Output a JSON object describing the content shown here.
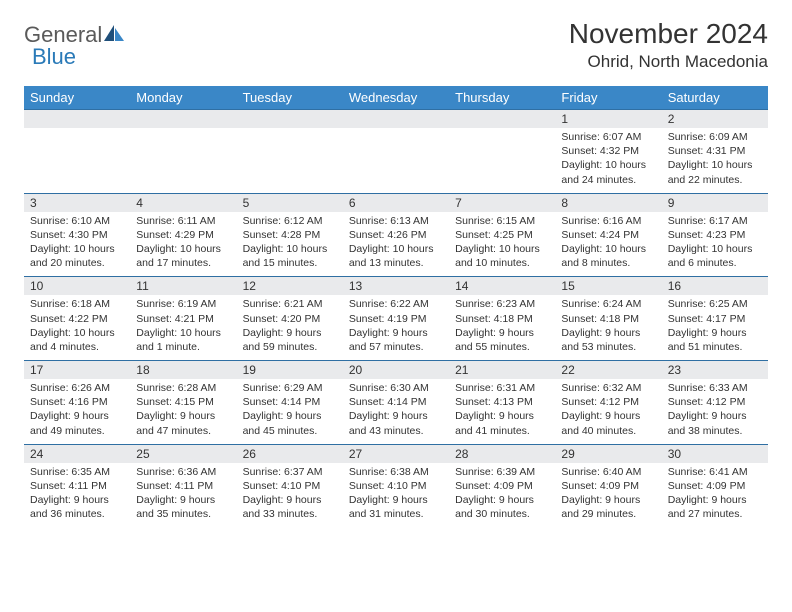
{
  "brand": {
    "name1": "General",
    "name2": "Blue"
  },
  "title": "November 2024",
  "location": "Ohrid, North Macedonia",
  "colors": {
    "header_bg": "#3a87c7",
    "header_text": "#ffffff",
    "daynum_bg": "#e9eaec",
    "row_border": "#2f6fa3",
    "body_text": "#333333",
    "logo_gray": "#5a5a5a",
    "logo_blue": "#2a7ab8",
    "page_bg": "#ffffff"
  },
  "typography": {
    "title_fontsize": 28,
    "location_fontsize": 17,
    "header_fontsize": 13,
    "daynum_fontsize": 12,
    "cell_fontsize": 10.5,
    "logo_fontsize": 22
  },
  "day_headers": [
    "Sunday",
    "Monday",
    "Tuesday",
    "Wednesday",
    "Thursday",
    "Friday",
    "Saturday"
  ],
  "weeks": [
    [
      {
        "n": "",
        "lines": [
          "",
          "",
          "",
          ""
        ]
      },
      {
        "n": "",
        "lines": [
          "",
          "",
          "",
          ""
        ]
      },
      {
        "n": "",
        "lines": [
          "",
          "",
          "",
          ""
        ]
      },
      {
        "n": "",
        "lines": [
          "",
          "",
          "",
          ""
        ]
      },
      {
        "n": "",
        "lines": [
          "",
          "",
          "",
          ""
        ]
      },
      {
        "n": "1",
        "lines": [
          "Sunrise: 6:07 AM",
          "Sunset: 4:32 PM",
          "Daylight: 10 hours",
          "and 24 minutes."
        ]
      },
      {
        "n": "2",
        "lines": [
          "Sunrise: 6:09 AM",
          "Sunset: 4:31 PM",
          "Daylight: 10 hours",
          "and 22 minutes."
        ]
      }
    ],
    [
      {
        "n": "3",
        "lines": [
          "Sunrise: 6:10 AM",
          "Sunset: 4:30 PM",
          "Daylight: 10 hours",
          "and 20 minutes."
        ]
      },
      {
        "n": "4",
        "lines": [
          "Sunrise: 6:11 AM",
          "Sunset: 4:29 PM",
          "Daylight: 10 hours",
          "and 17 minutes."
        ]
      },
      {
        "n": "5",
        "lines": [
          "Sunrise: 6:12 AM",
          "Sunset: 4:28 PM",
          "Daylight: 10 hours",
          "and 15 minutes."
        ]
      },
      {
        "n": "6",
        "lines": [
          "Sunrise: 6:13 AM",
          "Sunset: 4:26 PM",
          "Daylight: 10 hours",
          "and 13 minutes."
        ]
      },
      {
        "n": "7",
        "lines": [
          "Sunrise: 6:15 AM",
          "Sunset: 4:25 PM",
          "Daylight: 10 hours",
          "and 10 minutes."
        ]
      },
      {
        "n": "8",
        "lines": [
          "Sunrise: 6:16 AM",
          "Sunset: 4:24 PM",
          "Daylight: 10 hours",
          "and 8 minutes."
        ]
      },
      {
        "n": "9",
        "lines": [
          "Sunrise: 6:17 AM",
          "Sunset: 4:23 PM",
          "Daylight: 10 hours",
          "and 6 minutes."
        ]
      }
    ],
    [
      {
        "n": "10",
        "lines": [
          "Sunrise: 6:18 AM",
          "Sunset: 4:22 PM",
          "Daylight: 10 hours",
          "and 4 minutes."
        ]
      },
      {
        "n": "11",
        "lines": [
          "Sunrise: 6:19 AM",
          "Sunset: 4:21 PM",
          "Daylight: 10 hours",
          "and 1 minute."
        ]
      },
      {
        "n": "12",
        "lines": [
          "Sunrise: 6:21 AM",
          "Sunset: 4:20 PM",
          "Daylight: 9 hours",
          "and 59 minutes."
        ]
      },
      {
        "n": "13",
        "lines": [
          "Sunrise: 6:22 AM",
          "Sunset: 4:19 PM",
          "Daylight: 9 hours",
          "and 57 minutes."
        ]
      },
      {
        "n": "14",
        "lines": [
          "Sunrise: 6:23 AM",
          "Sunset: 4:18 PM",
          "Daylight: 9 hours",
          "and 55 minutes."
        ]
      },
      {
        "n": "15",
        "lines": [
          "Sunrise: 6:24 AM",
          "Sunset: 4:18 PM",
          "Daylight: 9 hours",
          "and 53 minutes."
        ]
      },
      {
        "n": "16",
        "lines": [
          "Sunrise: 6:25 AM",
          "Sunset: 4:17 PM",
          "Daylight: 9 hours",
          "and 51 minutes."
        ]
      }
    ],
    [
      {
        "n": "17",
        "lines": [
          "Sunrise: 6:26 AM",
          "Sunset: 4:16 PM",
          "Daylight: 9 hours",
          "and 49 minutes."
        ]
      },
      {
        "n": "18",
        "lines": [
          "Sunrise: 6:28 AM",
          "Sunset: 4:15 PM",
          "Daylight: 9 hours",
          "and 47 minutes."
        ]
      },
      {
        "n": "19",
        "lines": [
          "Sunrise: 6:29 AM",
          "Sunset: 4:14 PM",
          "Daylight: 9 hours",
          "and 45 minutes."
        ]
      },
      {
        "n": "20",
        "lines": [
          "Sunrise: 6:30 AM",
          "Sunset: 4:14 PM",
          "Daylight: 9 hours",
          "and 43 minutes."
        ]
      },
      {
        "n": "21",
        "lines": [
          "Sunrise: 6:31 AM",
          "Sunset: 4:13 PM",
          "Daylight: 9 hours",
          "and 41 minutes."
        ]
      },
      {
        "n": "22",
        "lines": [
          "Sunrise: 6:32 AM",
          "Sunset: 4:12 PM",
          "Daylight: 9 hours",
          "and 40 minutes."
        ]
      },
      {
        "n": "23",
        "lines": [
          "Sunrise: 6:33 AM",
          "Sunset: 4:12 PM",
          "Daylight: 9 hours",
          "and 38 minutes."
        ]
      }
    ],
    [
      {
        "n": "24",
        "lines": [
          "Sunrise: 6:35 AM",
          "Sunset: 4:11 PM",
          "Daylight: 9 hours",
          "and 36 minutes."
        ]
      },
      {
        "n": "25",
        "lines": [
          "Sunrise: 6:36 AM",
          "Sunset: 4:11 PM",
          "Daylight: 9 hours",
          "and 35 minutes."
        ]
      },
      {
        "n": "26",
        "lines": [
          "Sunrise: 6:37 AM",
          "Sunset: 4:10 PM",
          "Daylight: 9 hours",
          "and 33 minutes."
        ]
      },
      {
        "n": "27",
        "lines": [
          "Sunrise: 6:38 AM",
          "Sunset: 4:10 PM",
          "Daylight: 9 hours",
          "and 31 minutes."
        ]
      },
      {
        "n": "28",
        "lines": [
          "Sunrise: 6:39 AM",
          "Sunset: 4:09 PM",
          "Daylight: 9 hours",
          "and 30 minutes."
        ]
      },
      {
        "n": "29",
        "lines": [
          "Sunrise: 6:40 AM",
          "Sunset: 4:09 PM",
          "Daylight: 9 hours",
          "and 29 minutes."
        ]
      },
      {
        "n": "30",
        "lines": [
          "Sunrise: 6:41 AM",
          "Sunset: 4:09 PM",
          "Daylight: 9 hours",
          "and 27 minutes."
        ]
      }
    ]
  ]
}
